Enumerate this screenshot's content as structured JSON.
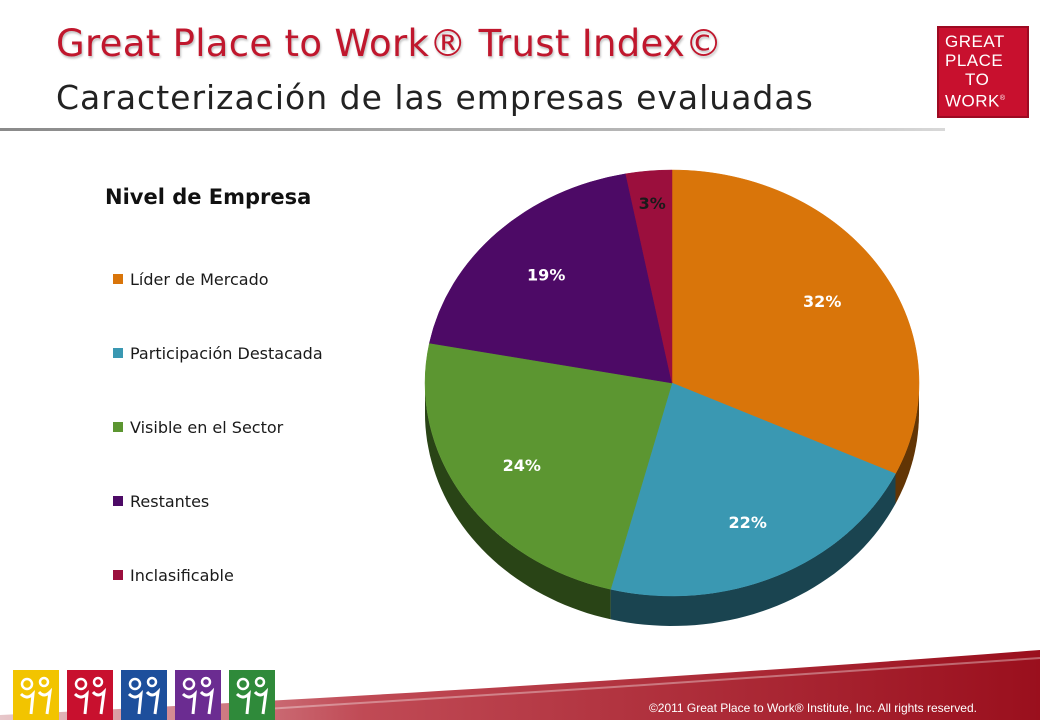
{
  "header": {
    "title": "Great Place to Work® Trust Index©",
    "subtitle": "Caracterización de las empresas evaluadas"
  },
  "logo": {
    "lines": [
      "GREAT",
      "PLACE",
      "TO",
      "WORK"
    ],
    "registered": "®",
    "color": "#c8102e"
  },
  "footer": {
    "copyright": "©2011 Great Place to Work® Institute, Inc. All rights reserved.",
    "icons": [
      {
        "name": "yellow-people-icon",
        "color": "#f2c400"
      },
      {
        "name": "red-people-icon",
        "color": "#c8102e"
      },
      {
        "name": "blue-people-icon",
        "color": "#1d4f9c"
      },
      {
        "name": "purple-people-icon",
        "color": "#6b2c91"
      },
      {
        "name": "green-people-icon",
        "color": "#2f8a3a"
      }
    ],
    "band_color": "#a5101f"
  },
  "chart_data": {
    "type": "pie",
    "title": "Nivel de Empresa",
    "legend_position": "left",
    "series": [
      {
        "name": "Líder de Mercado",
        "value": 32,
        "label": "32%",
        "color": "#d9750a"
      },
      {
        "name": "Participación Destacada",
        "value": 22,
        "label": "22%",
        "color": "#3a98b2"
      },
      {
        "name": "Visible en el Sector",
        "value": 24,
        "label": "24%",
        "color": "#5c9631"
      },
      {
        "name": "Restantes",
        "value": 19,
        "label": "19%",
        "color": "#4d0a66"
      },
      {
        "name": "Inclasificable",
        "value": 3,
        "label": "3%",
        "color": "#9b0f3d"
      }
    ]
  }
}
